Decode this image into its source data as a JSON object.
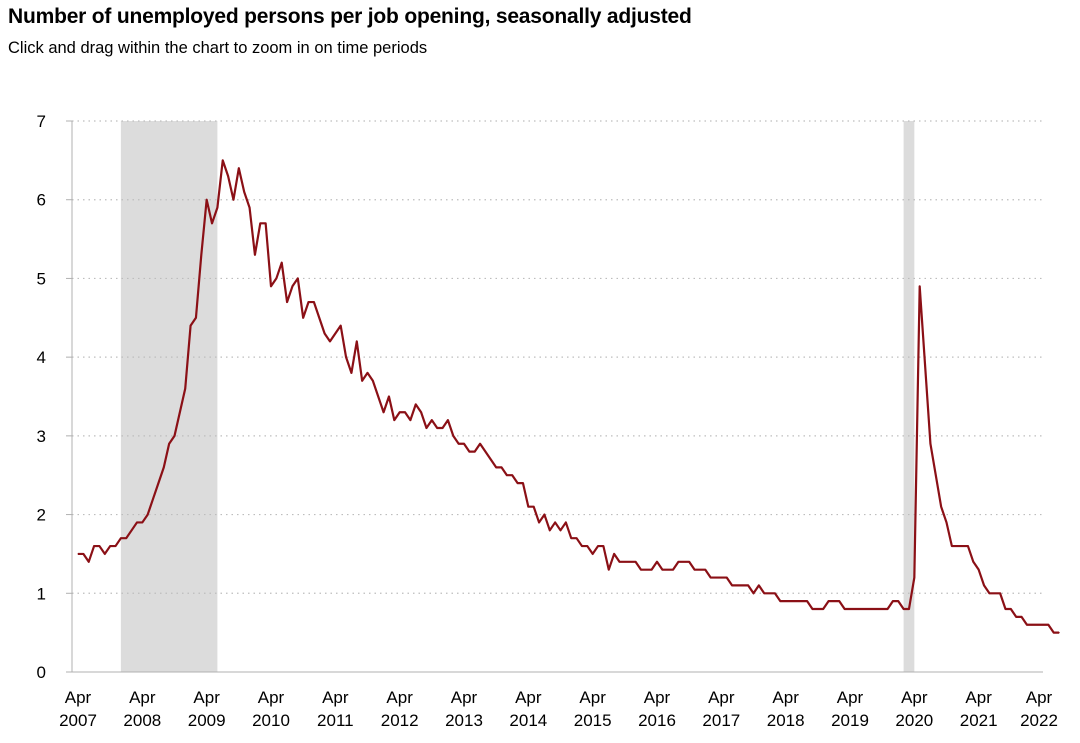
{
  "header": {
    "title": "Number of unemployed persons per job opening, seasonally adjusted",
    "subtitle": "Click and drag within the chart to zoom in on time periods"
  },
  "colors": {
    "line": "#8b1016",
    "recession": "#dcdcdc",
    "grid": "#bdbdbd",
    "axis": "#b0b0b0"
  },
  "chart_data": {
    "type": "line",
    "title": "Number of unemployed persons per job opening, seasonally adjusted",
    "xlabel": "",
    "ylabel": "",
    "ylim": [
      0,
      7
    ],
    "y_ticks": [
      "0",
      "1",
      "2",
      "3",
      "4",
      "5",
      "6",
      "7"
    ],
    "x_ticks": [
      {
        "month": "Apr",
        "year": "2007"
      },
      {
        "month": "Apr",
        "year": "2008"
      },
      {
        "month": "Apr",
        "year": "2009"
      },
      {
        "month": "Apr",
        "year": "2010"
      },
      {
        "month": "Apr",
        "year": "2011"
      },
      {
        "month": "Apr",
        "year": "2012"
      },
      {
        "month": "Apr",
        "year": "2013"
      },
      {
        "month": "Apr",
        "year": "2014"
      },
      {
        "month": "Apr",
        "year": "2015"
      },
      {
        "month": "Apr",
        "year": "2016"
      },
      {
        "month": "Apr",
        "year": "2017"
      },
      {
        "month": "Apr",
        "year": "2018"
      },
      {
        "month": "Apr",
        "year": "2019"
      },
      {
        "month": "Apr",
        "year": "2020"
      },
      {
        "month": "Apr",
        "year": "2021"
      },
      {
        "month": "Apr",
        "year": "2022"
      }
    ],
    "grid": true,
    "recessions": [
      {
        "start": "2007-12",
        "end": "2009-06"
      },
      {
        "start": "2020-02",
        "end": "2020-04"
      }
    ],
    "series": [
      {
        "x_start": "2007-04",
        "values": [
          1.5,
          1.5,
          1.4,
          1.6,
          1.6,
          1.5,
          1.6,
          1.6,
          1.7,
          1.7,
          1.8,
          1.9,
          1.9,
          2.0,
          2.2,
          2.4,
          2.6,
          2.9,
          3.0,
          3.3,
          3.6,
          4.4,
          4.5,
          5.3,
          6.0,
          5.7,
          5.9,
          6.5,
          6.3,
          6.0,
          6.4,
          6.1,
          5.9,
          5.3,
          5.7,
          5.7,
          4.9,
          5.0,
          5.2,
          4.7,
          4.9,
          5.0,
          4.5,
          4.7,
          4.7,
          4.5,
          4.3,
          4.2,
          4.3,
          4.4,
          4.0,
          3.8,
          4.2,
          3.7,
          3.8,
          3.7,
          3.5,
          3.3,
          3.5,
          3.2,
          3.3,
          3.3,
          3.2,
          3.4,
          3.3,
          3.1,
          3.2,
          3.1,
          3.1,
          3.2,
          3.0,
          2.9,
          2.9,
          2.8,
          2.8,
          2.9,
          2.8,
          2.7,
          2.6,
          2.6,
          2.5,
          2.5,
          2.4,
          2.4,
          2.1,
          2.1,
          1.9,
          2.0,
          1.8,
          1.9,
          1.8,
          1.9,
          1.7,
          1.7,
          1.6,
          1.6,
          1.5,
          1.6,
          1.6,
          1.3,
          1.5,
          1.4,
          1.4,
          1.4,
          1.4,
          1.3,
          1.3,
          1.3,
          1.4,
          1.3,
          1.3,
          1.3,
          1.4,
          1.4,
          1.4,
          1.3,
          1.3,
          1.3,
          1.2,
          1.2,
          1.2,
          1.2,
          1.1,
          1.1,
          1.1,
          1.1,
          1.0,
          1.1,
          1.0,
          1.0,
          1.0,
          0.9,
          0.9,
          0.9,
          0.9,
          0.9,
          0.9,
          0.8,
          0.8,
          0.8,
          0.9,
          0.9,
          0.9,
          0.8,
          0.8,
          0.8,
          0.8,
          0.8,
          0.8,
          0.8,
          0.8,
          0.8,
          0.9,
          0.9,
          0.8,
          0.8,
          1.2,
          4.9,
          3.9,
          2.9,
          2.5,
          2.1,
          1.9,
          1.6,
          1.6,
          1.6,
          1.6,
          1.4,
          1.3,
          1.1,
          1.0,
          1.0,
          1.0,
          0.8,
          0.8,
          0.7,
          0.7,
          0.6,
          0.6,
          0.6,
          0.6,
          0.6,
          0.5,
          0.5
        ]
      }
    ]
  }
}
